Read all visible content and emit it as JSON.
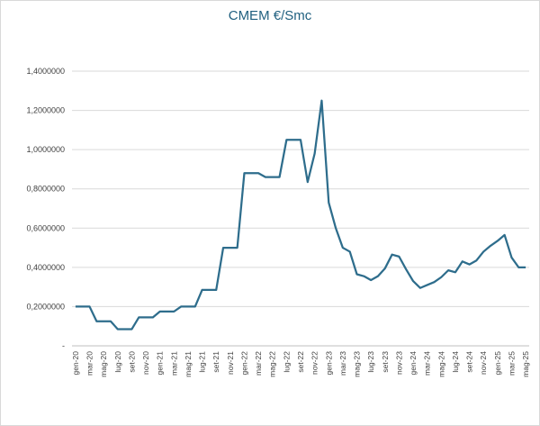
{
  "chart_data": {
    "type": "line",
    "title": "CMEM €/Smc",
    "xlabel": "",
    "ylabel": "",
    "ylim": [
      0,
      1.4
    ],
    "y_ticks": [
      0,
      0.2,
      0.4,
      0.6,
      0.8,
      1.0,
      1.2,
      1.4
    ],
    "y_tick_labels": [
      "-",
      "0,2000000",
      "0,4000000",
      "0,6000000",
      "0,8000000",
      "1,0000000",
      "1,2000000",
      "1,4000000"
    ],
    "grid": "horizontal",
    "legend": "none",
    "line_color": "#2e6d8c",
    "x": [
      "gen-20",
      "feb-20",
      "mar-20",
      "apr-20",
      "mag-20",
      "giu-20",
      "lug-20",
      "ago-20",
      "set-20",
      "ott-20",
      "nov-20",
      "dic-20",
      "gen-21",
      "feb-21",
      "mar-21",
      "apr-21",
      "mag-21",
      "giu-21",
      "lug-21",
      "ago-21",
      "set-21",
      "ott-21",
      "nov-21",
      "dic-21",
      "gen-22",
      "feb-22",
      "mar-22",
      "apr-22",
      "mag-22",
      "giu-22",
      "lug-22",
      "ago-22",
      "set-22",
      "ott-22",
      "nov-22",
      "dic-22",
      "gen-23",
      "feb-23",
      "mar-23",
      "apr-23",
      "mag-23",
      "giu-23",
      "lug-23",
      "ago-23",
      "set-23",
      "ott-23",
      "nov-23",
      "dic-23",
      "gen-24",
      "feb-24",
      "mar-24",
      "apr-24",
      "mag-24",
      "giu-24",
      "lug-24",
      "ago-24",
      "set-24",
      "ott-24",
      "nov-24",
      "dic-24",
      "gen-25",
      "feb-25",
      "mar-25",
      "apr-25",
      "mag-25"
    ],
    "x_tick_labels": [
      "gen-20",
      "mar-20",
      "mag-20",
      "lug-20",
      "set-20",
      "nov-20",
      "gen-21",
      "mar-21",
      "mag-21",
      "lug-21",
      "set-21",
      "nov-21",
      "gen-22",
      "mar-22",
      "mag-22",
      "lug-22",
      "set-22",
      "nov-22",
      "gen-23",
      "mar-23",
      "mag-23",
      "lug-23",
      "set-23",
      "nov-23",
      "gen-24",
      "mar-24",
      "mag-24",
      "lug-24",
      "set-24",
      "nov-24",
      "gen-25",
      "mar-25",
      "mag-25"
    ],
    "values": [
      0.2,
      0.2,
      0.2,
      0.125,
      0.125,
      0.125,
      0.085,
      0.085,
      0.085,
      0.145,
      0.145,
      0.145,
      0.175,
      0.175,
      0.175,
      0.2,
      0.2,
      0.2,
      0.285,
      0.285,
      0.285,
      0.5,
      0.5,
      0.5,
      0.88,
      0.88,
      0.88,
      0.86,
      0.86,
      0.86,
      1.05,
      1.05,
      1.05,
      0.835,
      0.98,
      1.25,
      0.73,
      0.6,
      0.5,
      0.48,
      0.365,
      0.355,
      0.335,
      0.355,
      0.395,
      0.465,
      0.455,
      0.39,
      0.33,
      0.295,
      0.31,
      0.325,
      0.35,
      0.385,
      0.375,
      0.43,
      0.415,
      0.435,
      0.48,
      0.51,
      0.535,
      0.565,
      0.45,
      0.4,
      0.4
    ]
  }
}
